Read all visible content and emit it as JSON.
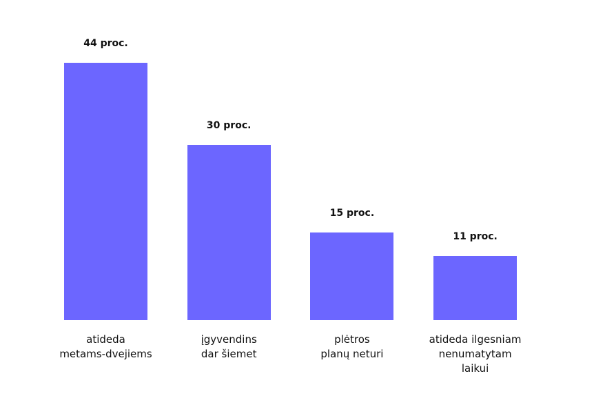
{
  "chart_data": {
    "type": "bar",
    "categories": [
      "atideda\nmetams-dvejiems",
      "įgyvendins\ndar šiemet",
      "plėtros\nplanų neturi",
      "atideda ilgesniam\nnenumatytam\nlaikui"
    ],
    "values": [
      44,
      30,
      15,
      11
    ],
    "value_labels": [
      "44 proc.",
      "30 proc.",
      "15 proc.",
      "11 proc."
    ],
    "color": "#6c66ff"
  }
}
